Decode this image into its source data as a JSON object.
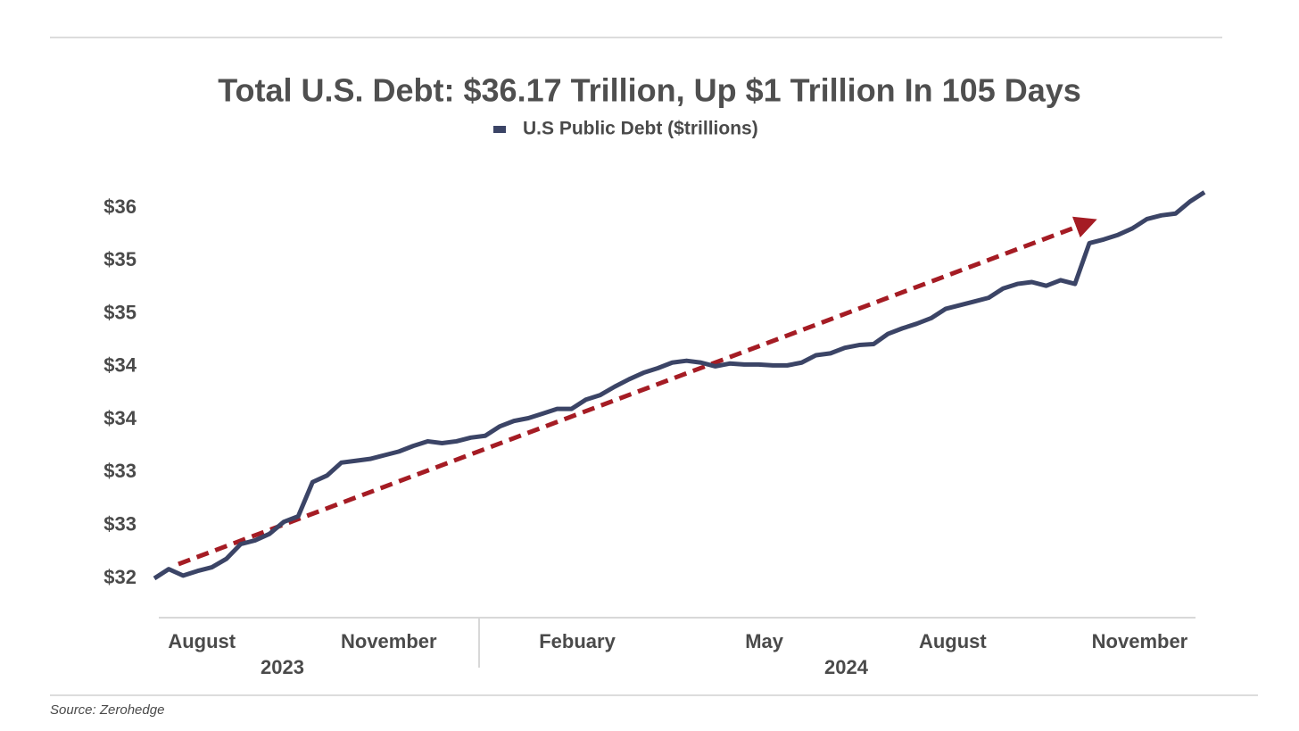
{
  "chart_data": {
    "type": "line",
    "title": "Total U.S. Debt: $36.17 Trillion, Up $1 Trillion In 105 Days",
    "source": "Source: Zerohedge",
    "series": [
      {
        "name": "U.S Public Debt ($trillions)",
        "color": "#3b4466",
        "values": [
          32.0,
          32.1,
          32.03,
          32.08,
          32.12,
          32.21,
          32.37,
          32.41,
          32.48,
          32.61,
          32.67,
          33.04,
          33.11,
          33.25,
          33.27,
          33.29,
          33.33,
          33.37,
          33.43,
          33.48,
          33.46,
          33.48,
          33.52,
          33.54,
          33.64,
          33.7,
          33.73,
          33.78,
          33.83,
          33.83,
          33.93,
          33.98,
          34.07,
          34.15,
          34.22,
          34.27,
          34.33,
          34.35,
          34.33,
          34.29,
          34.32,
          34.31,
          34.31,
          34.3,
          34.3,
          34.33,
          34.41,
          34.43,
          34.49,
          34.52,
          34.53,
          34.64,
          34.7,
          34.75,
          34.81,
          34.91,
          34.95,
          34.99,
          35.03,
          35.13,
          35.18,
          35.2,
          35.16,
          35.22,
          35.18,
          35.62,
          35.66,
          35.71,
          35.78,
          35.88,
          35.92,
          35.94,
          36.07,
          36.17
        ]
      }
    ],
    "xlim": [
      0,
      73
    ],
    "xticks": [
      {
        "value": 3.3,
        "label": "August"
      },
      {
        "value": 16.3,
        "label": "November"
      },
      {
        "value": 29.4,
        "label": "Febuary"
      },
      {
        "value": 42.4,
        "label": "May"
      },
      {
        "value": 55.5,
        "label": "August"
      },
      {
        "value": 68.5,
        "label": "November"
      }
    ],
    "year_labels": [
      {
        "value": 8.9,
        "label": "2023"
      },
      {
        "value": 48.1,
        "label": "2024"
      }
    ],
    "ylim": [
      32,
      36
    ],
    "yticks": [
      {
        "value": 32,
        "label": "$32"
      },
      {
        "value": 32.571,
        "label": "$33"
      },
      {
        "value": 33.143,
        "label": "$33"
      },
      {
        "value": 33.714,
        "label": "$34"
      },
      {
        "value": 34.286,
        "label": "$34"
      },
      {
        "value": 34.857,
        "label": "$35"
      },
      {
        "value": 35.429,
        "label": "$35"
      },
      {
        "value": 36,
        "label": "$36"
      }
    ]
  }
}
